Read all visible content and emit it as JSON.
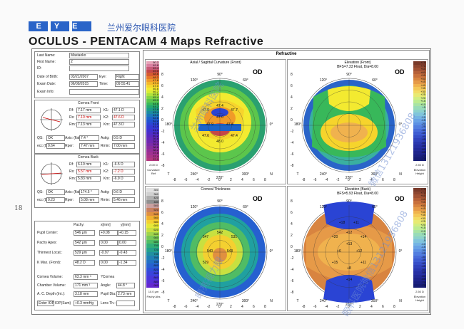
{
  "header": {
    "logo": "EYE",
    "hospital": "兰州爱尔眼科医院",
    "title": "OCULUS - PENTACAM  4 Maps Refractive"
  },
  "margin_note": "18",
  "patient": {
    "last_name_label": "Last Name:",
    "last_name": "Maxiaoko",
    "first_name_label": "First Name:",
    "first_name": "2",
    "id_label": "ID:",
    "id": "",
    "dob_label": "Date of Birth:",
    "dob": "03/21/2007",
    "eye_label": "Eye:",
    "eye": "Right",
    "exam_date_label": "Exam Date:",
    "exam_date": "06/09/2015",
    "time_label": "Time:",
    "time": "09:55:41",
    "exam_info_label": "Exam Info:",
    "exam_info": ""
  },
  "cornea_front": {
    "title": "Cornea Front",
    "rf_label": "Rf:",
    "rf": "7.17 mm",
    "k1_label": "K1:",
    "k1": "47.1 D",
    "rs_label": "Rs:",
    "rs": "7.10 mm",
    "k2_label": "K2:",
    "k2": "47.6 D",
    "rm_label": "Rm:",
    "rm": "7.13 mm",
    "km_label": "Km:",
    "km": "47.3 D",
    "qs_label": "QS:",
    "qs": "OK",
    "axis_label": "Axis: (flat)",
    "axis": "7.4 °",
    "astig_label": "Astig:",
    "astig": "0.5 D",
    "ecc_label": "ecc (8mm):",
    "ecc": "0.64",
    "rper_label": "Rper:",
    "rper": "7.47 mm",
    "rmin_label": "Rmin:",
    "rmin": "7.00 mm"
  },
  "cornea_back": {
    "title": "Cornea Back",
    "rf_label": "Rf:",
    "rf": "6.10 mm",
    "k1_label": "K1:",
    "k1": "-6.5 D",
    "rs_label": "Rs:",
    "rs": "5.57 mm",
    "k2_label": "K2:",
    "k2": "-7.2 D",
    "rm_label": "Rm:",
    "rm": "5.83 mm",
    "km_label": "Km:",
    "km": "-6.9 D",
    "qs_label": "QS:",
    "qs": "OK",
    "axis_label": "Axis: (flat)",
    "axis": "174.5 °",
    "astig_label": "Astig:",
    "astig": "0.6 D",
    "ecc_label": "ecc (8mm):",
    "ecc": "0.23",
    "rper_label": "Rper:",
    "rper": "5.08 mm",
    "rmin_label": "Rmin:",
    "rmin": "5.46 mm"
  },
  "pachy": {
    "col_pachy": "Pachy:",
    "col_x": "x[mm]",
    "col_y": "y[mm]",
    "rows": [
      {
        "label": "Pupil Center:",
        "pachy": "546 μm",
        "x": "+0.08",
        "y": "+0.15"
      },
      {
        "label": "Pachy Apex:",
        "pachy": "542 μm",
        "x": "0.00",
        "y": "0.00"
      },
      {
        "label": "Thinnest Locat.:",
        "pachy": "529 μm",
        "x": "-0.97",
        "y": "-0.43"
      },
      {
        "label": "K Max. (Front):",
        "pachy": "48.2 D",
        "x": "0.00",
        "y": "-1.34"
      }
    ],
    "cornea_volume_label": "Cornea Volume:",
    "cornea_volume": "63.3 mm ³",
    "kpd_label": "?Cornea",
    "kpd": "",
    "chamber_volume_label": "Chamber Volume:",
    "chamber_volume": "171 mm ³",
    "angle_label": "Angle:",
    "angle": "44.8 °",
    "ac_depth_label": "A. C. Depth (Int.):",
    "ac_depth": "3.18 mm",
    "pupil_dia_label": "Pupil Dia:",
    "pupil_dia": "2.73 mm",
    "iop_label": "Enter IOP",
    "iop_sub": "IOP(Sum)",
    "iop": "+0.3 mmHg",
    "lens_label": "Lens Th.:",
    "lens": ""
  },
  "refractive": {
    "title": "Refractive",
    "maps": [
      {
        "title": "Axial / Sagittal Curvature (Front)",
        "od": "OD",
        "scale_caption": "Curvature Ref",
        "scale_foot": "2.00 D",
        "scale": [
          "50.2",
          "49.8",
          "49.4",
          "49.0",
          "48.6",
          "48.2",
          "47.8",
          "47.4",
          "47.0",
          "46.6",
          "46.2",
          "45.8",
          "45.4",
          "45.0",
          "44.6",
          "44.2",
          "43.8",
          "43.4",
          "43.0",
          "42.6",
          "42.2",
          "41.8",
          "41.4",
          "41.0",
          "40.6",
          "40.2",
          "39.8",
          "39.4",
          "39.0",
          "38.6",
          "38.2",
          "37.8",
          "37.4",
          "37.0"
        ],
        "labels": [
          "47.0",
          "47.4",
          "47.7",
          "47.9",
          "47.4",
          "47.6",
          "48.0",
          "47.4",
          "47.0"
        ]
      },
      {
        "title": "Elevation (Front)",
        "sub": "BFS=7.33 Float, Dia=8.00",
        "od": "OD",
        "scale_caption": "Elevation Height",
        "scale_foot": "2.50 D",
        "scale": [
          "+75",
          "+70",
          "+65",
          "+60",
          "+55",
          "+50",
          "+45",
          "+40",
          "+35",
          "+30",
          "+25",
          "+20",
          "+15",
          "+10",
          "+5",
          "0",
          "-5",
          "-10",
          "-15",
          "-20",
          "-25",
          "-30",
          "-35",
          "-40",
          "-45",
          "-50",
          "-55",
          "-60",
          "-65",
          "-70",
          "-75"
        ],
        "labels": []
      },
      {
        "title": "Corneal Thickness",
        "od": "OD",
        "scale_caption": "Pachy Abs",
        "scale_foot": "10.0 μm",
        "scale": [
          "300",
          "360",
          "420",
          "480",
          "500",
          "520",
          "540",
          "560",
          "580",
          "600",
          "620",
          "640",
          "660",
          "680",
          "700",
          "720",
          "740",
          "760",
          "780",
          "800",
          "820",
          "840",
          "860",
          "880",
          "900"
        ],
        "labels": [
          "547",
          "542",
          "531",
          "540",
          "543",
          "529"
        ]
      },
      {
        "title": "Elevation (Back)",
        "sub": "BFS=5.93 Float, Dia=8.00",
        "od": "OD",
        "scale_caption": "Elevation Height",
        "scale_foot": "2.50 D",
        "scale": [
          "+75",
          "+70",
          "+65",
          "+60",
          "+55",
          "+50",
          "+45",
          "+40",
          "+35",
          "+30",
          "+25",
          "+20",
          "+15",
          "+10",
          "+5",
          "0",
          "-5",
          "-10",
          "-15",
          "-20",
          "-25",
          "-30",
          "-35",
          "-40",
          "-45",
          "-50",
          "-55",
          "-60",
          "-65",
          "-70",
          "-75"
        ],
        "labels": [
          "+20",
          "+12",
          "+14",
          "+6",
          "+12",
          "+15",
          "+8",
          "+11",
          "+13",
          "+18",
          "+11",
          "+14"
        ]
      }
    ],
    "axis_ticks": [
      "-8",
      "-6",
      "-4",
      "-2",
      "0",
      "2",
      "4",
      "6",
      "8"
    ],
    "angle_top": [
      "90°",
      "120°",
      "60°"
    ],
    "angle_bottom": [
      "240°",
      "270°",
      "300°"
    ],
    "side_left": "T",
    "side_right": "N",
    "angle_left": "180°",
    "angle_right": "0°"
  },
  "watermarks": [
    "兰州眼科医院",
    "微信13121936808",
    "眼科医院微信13121936808",
    "晴亮视力眼"
  ],
  "colors": {
    "accent": "#2a64c8",
    "red_value": "#cc0000"
  }
}
